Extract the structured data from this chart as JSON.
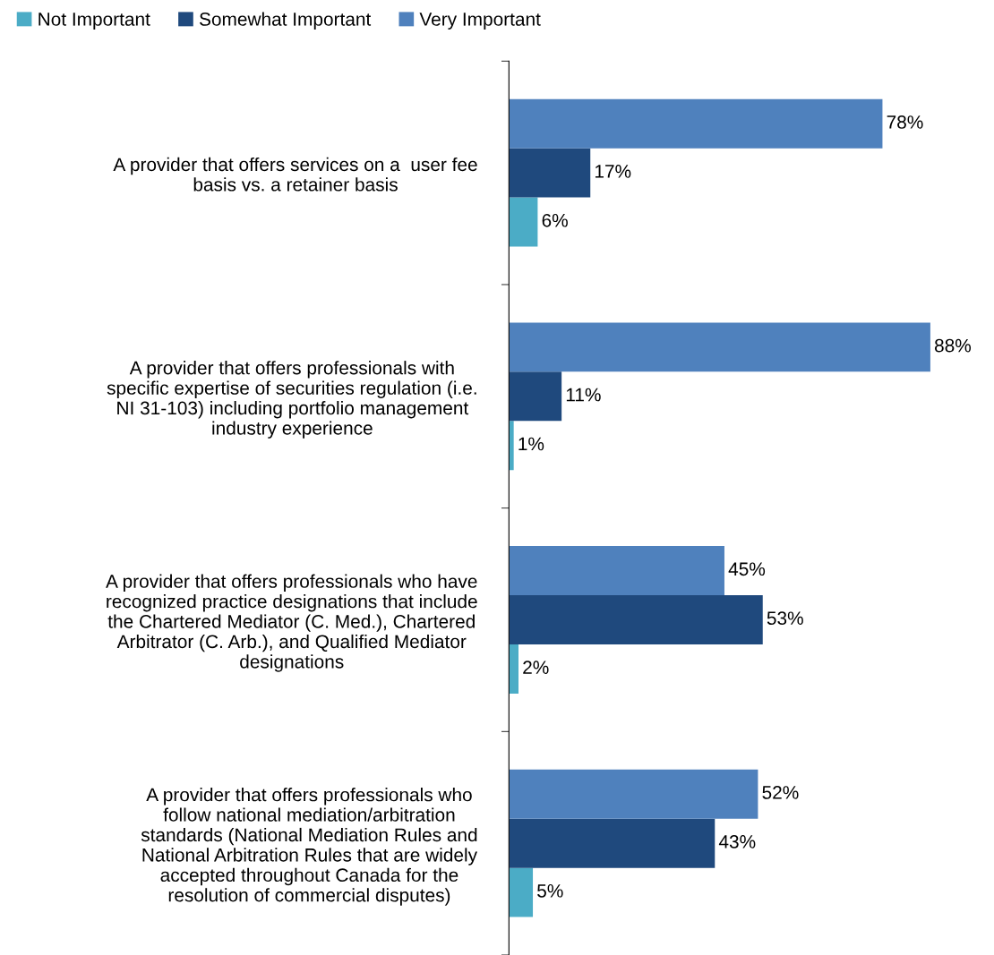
{
  "chart_data": {
    "type": "bar",
    "orientation": "horizontal",
    "legend": "top",
    "categories": [
      "A provider that offers services on a  user fee\nbasis vs. a retainer basis",
      "A provider that offers professionals with\nspecific expertise of securities regulation (i.e.\nNI 31-103) including portfolio management\nindustry experience",
      "A provider that offers professionals who have\nrecognized practice designations that include\nthe Chartered Mediator (C. Med.), Chartered\nArbitrator (C. Arb.), and Qualified Mediator\ndesignations",
      "A provider that offers professionals who\nfollow national mediation/arbitration\nstandards (National Mediation Rules and\nNational Arbitration Rules that are widely\naccepted throughout Canada for the\nresolution of commercial disputes)"
    ],
    "series": [
      {
        "name": "Not Important",
        "color": "#4bacc6",
        "values": [
          6,
          1,
          2,
          5
        ],
        "value_labels": [
          "6%",
          "1%",
          "2%",
          "5%"
        ]
      },
      {
        "name": "Somewhat Important",
        "color": "#1f497d",
        "values": [
          17,
          11,
          53,
          43
        ],
        "value_labels": [
          "17%",
          "11%",
          "53%",
          "43%"
        ]
      },
      {
        "name": "Very Important",
        "color": "#4f81bd",
        "values": [
          78,
          88,
          45,
          52
        ],
        "value_labels": [
          "78%",
          "88%",
          "45%",
          "52%"
        ]
      }
    ]
  }
}
